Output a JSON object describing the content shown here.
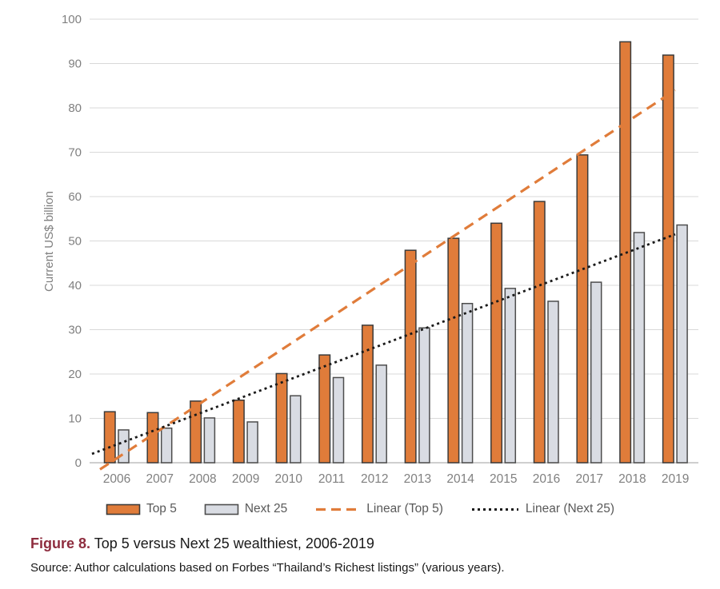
{
  "colors": {
    "orange": "#E07C3A",
    "orange_outline": "#3B3B3B",
    "gray_fill": "#D9DCE3",
    "gray_outline": "#4D4D4D",
    "gridline": "#D9D9D9",
    "axis_line": "#BFBFBF",
    "tick_label": "#808080",
    "legend_text": "#595959",
    "dotted_line": "#1A1A1A",
    "figure_label": "#8E2C3E"
  },
  "chart_data": {
    "type": "bar",
    "title": "",
    "xlabel": "",
    "ylabel": "Current US$ billion",
    "ylim": [
      0,
      100
    ],
    "ytick_step": 10,
    "grid": true,
    "legend_position": "bottom",
    "categories": [
      "2006",
      "2007",
      "2008",
      "2009",
      "2010",
      "2011",
      "2012",
      "2013",
      "2014",
      "2015",
      "2016",
      "2017",
      "2018",
      "2019"
    ],
    "series": [
      {
        "name": "Top 5",
        "values": [
          11.5,
          11.3,
          13.9,
          14.1,
          20.1,
          24.3,
          31.0,
          47.9,
          50.6,
          54.0,
          58.9,
          69.4,
          94.9,
          91.9
        ]
      },
      {
        "name": "Next 25",
        "values": [
          7.4,
          7.8,
          10.1,
          9.2,
          15.1,
          19.2,
          22.0,
          30.4,
          35.9,
          39.3,
          36.4,
          40.7,
          51.9,
          53.6
        ]
      }
    ],
    "trendlines": [
      {
        "name": "Linear (Top 5)",
        "style": "dashed",
        "start_value": -1.5,
        "end_value": 84.0
      },
      {
        "name": "Linear (Next 25)",
        "style": "dotted",
        "start_value": 2.0,
        "end_value": 51.5
      }
    ]
  },
  "caption": {
    "figure_label": "Figure 8.",
    "title": " Top 5 versus Next 25 wealthiest, 2006-2019"
  },
  "source": "Source: Author calculations based on Forbes “Thailand’s Richest listings” (various years)."
}
